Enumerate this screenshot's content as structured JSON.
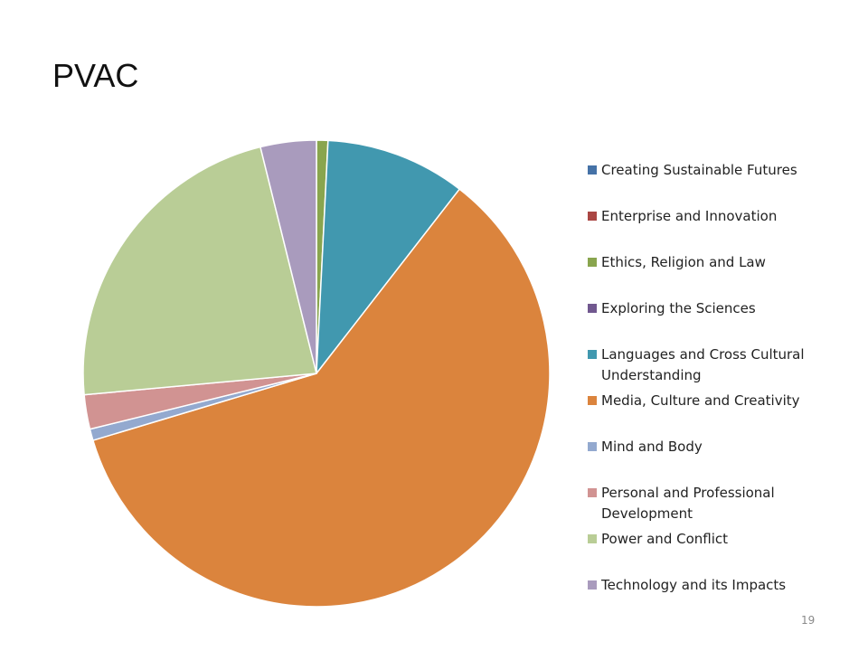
{
  "slide": {
    "title": "PVAC",
    "page_number": "19"
  },
  "chart_data": {
    "type": "pie",
    "title": "",
    "start_angle_deg": 0,
    "direction": "clockwise",
    "legend_position": "right",
    "categories": [
      "Creating Sustainable Futures",
      "Enterprise and Innovation",
      "Ethics, Religion and Law",
      "Exploring the Sciences",
      "Languages and Cross Cultural Understanding",
      "Media, Culture and Creativity",
      "Mind and Body",
      "Personal and Professional Development",
      "Power and Conflict",
      "Technology and its Impacts"
    ],
    "values": [
      0.0,
      0.0,
      0.8,
      0.0,
      9.8,
      60.4,
      0.8,
      2.4,
      22.8,
      3.9
    ],
    "colors": [
      "#4572A7",
      "#AA4643",
      "#89A54E",
      "#71588F",
      "#4198AF",
      "#DB843D",
      "#93A9CF",
      "#D19392",
      "#B9CD96",
      "#A99BBD"
    ]
  }
}
